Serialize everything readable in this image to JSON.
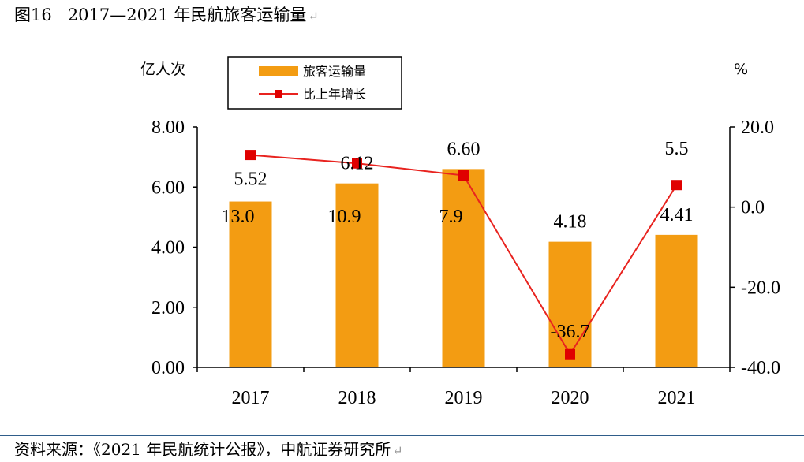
{
  "header": {
    "figure_label": "图16",
    "title": "2017—2021 年民航旅客运输量",
    "return_mark": "↵"
  },
  "footer": {
    "source": "资料来源：《2021 年民航统计公报》，中航证券研究所",
    "return_mark": "↵"
  },
  "chart_data": {
    "type": "bar",
    "categories": [
      "2017",
      "2018",
      "2019",
      "2020",
      "2021"
    ],
    "series": [
      {
        "name": "旅客运输量",
        "kind": "bar",
        "axis": "left",
        "values": [
          5.52,
          6.12,
          6.6,
          4.18,
          4.41
        ],
        "labels": [
          "5.52",
          "6.12",
          "6.60",
          "4.18",
          "4.41"
        ],
        "color": "#f39c12"
      },
      {
        "name": "比上年增长",
        "kind": "line",
        "axis": "right",
        "values": [
          13.0,
          10.9,
          7.9,
          -36.7,
          5.5
        ],
        "labels": [
          "13.0",
          "10.9",
          "7.9",
          "-36.7",
          "5.5"
        ],
        "color": "#e8231f",
        "marker_color": "#e00000"
      }
    ],
    "left_axis": {
      "unit": "亿人次",
      "range": [
        0,
        8
      ],
      "ticks": [
        "0.00",
        "2.00",
        "4.00",
        "6.00",
        "8.00"
      ],
      "tick_values": [
        0,
        2,
        4,
        6,
        8
      ]
    },
    "right_axis": {
      "unit": "%",
      "range": [
        -40,
        20
      ],
      "ticks": [
        "-40.0",
        "-20.0",
        "0.0",
        "20.0"
      ],
      "tick_values": [
        -40,
        -20,
        0,
        20
      ]
    },
    "legend": {
      "position": "top-left",
      "entries": [
        "旅客运输量",
        "比上年增长"
      ]
    },
    "grid": false,
    "xlabel": "",
    "ylabel": "亿人次",
    "y2label": "%"
  }
}
